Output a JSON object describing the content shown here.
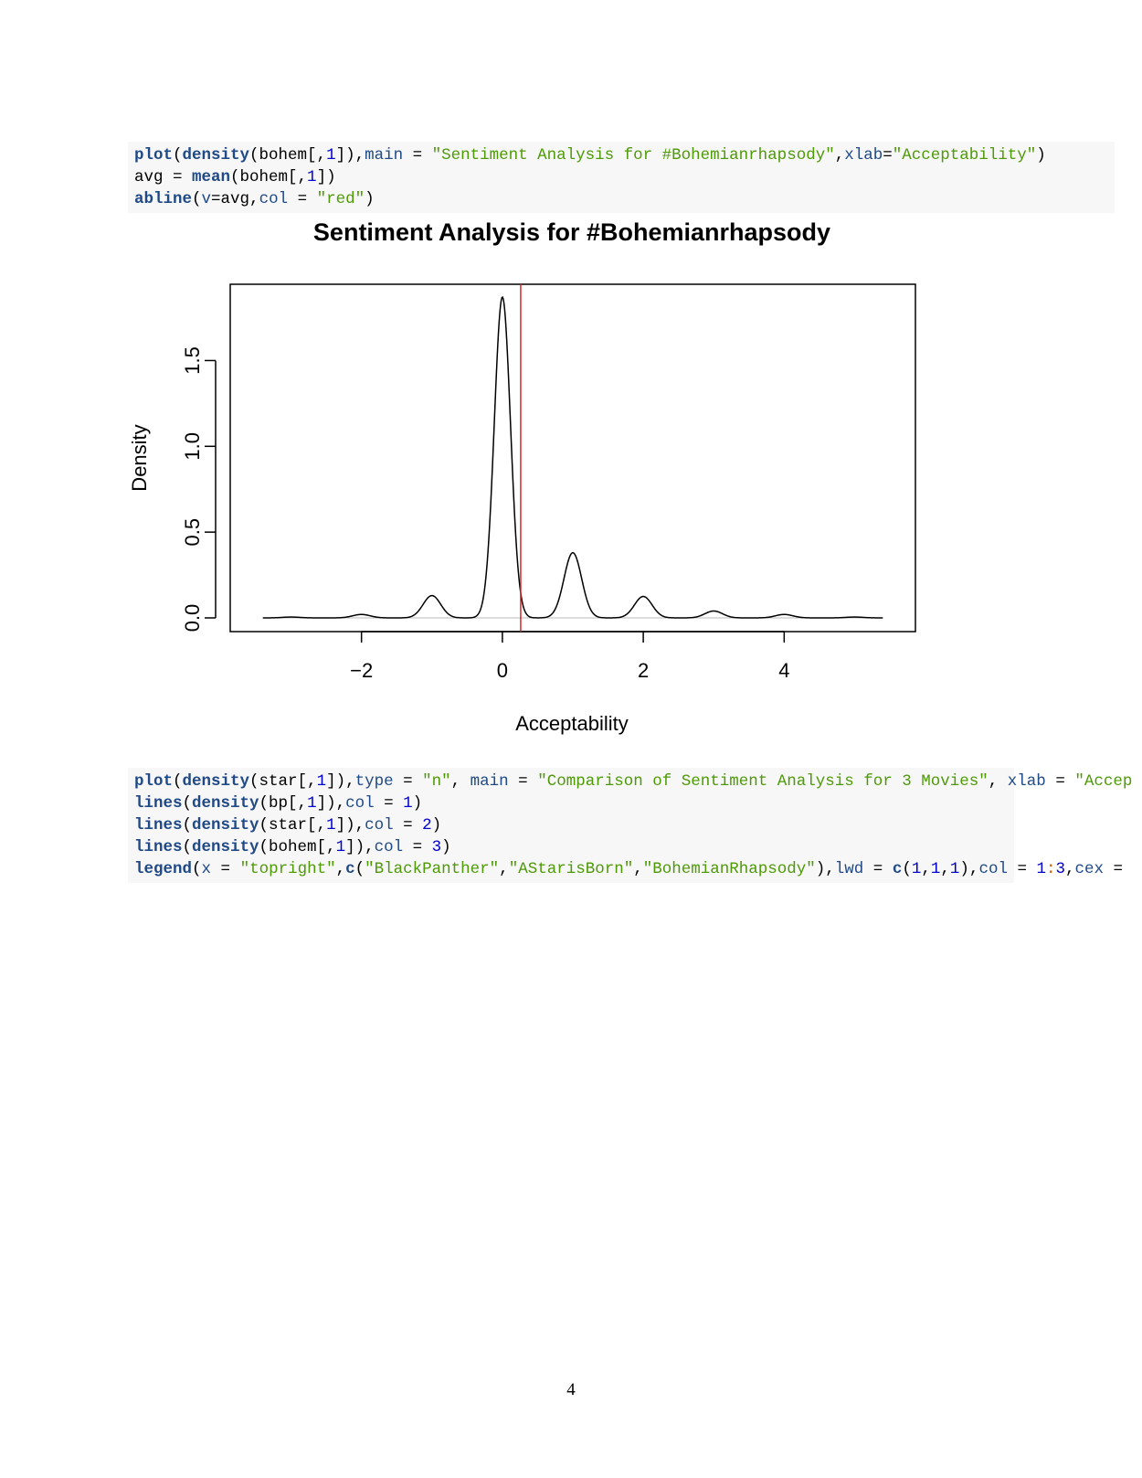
{
  "code_blocks": [
    {
      "lines": [
        [
          [
            "fn",
            "plot"
          ],
          [
            "t",
            "("
          ],
          [
            "fn",
            "density"
          ],
          [
            "t",
            "(bohem[,"
          ],
          [
            "num",
            "1"
          ],
          [
            "t",
            "]),"
          ],
          [
            "arg",
            "main"
          ],
          [
            "t",
            " = "
          ],
          [
            "str",
            "\"Sentiment Analysis for #Bohemianrhapsody\""
          ],
          [
            "t",
            ","
          ],
          [
            "arg",
            "xlab"
          ],
          [
            "t",
            "="
          ],
          [
            "str",
            "\"Acceptability\""
          ],
          [
            "t",
            ")"
          ]
        ],
        [
          [
            "t",
            "avg = "
          ],
          [
            "fn",
            "mean"
          ],
          [
            "t",
            "(bohem[,"
          ],
          [
            "num",
            "1"
          ],
          [
            "t",
            "])"
          ]
        ],
        [
          [
            "fn",
            "abline"
          ],
          [
            "t",
            "("
          ],
          [
            "arg",
            "v"
          ],
          [
            "t",
            "=avg,"
          ],
          [
            "arg",
            "col"
          ],
          [
            "t",
            " = "
          ],
          [
            "str",
            "\"red\""
          ],
          [
            "t",
            ")"
          ]
        ]
      ]
    },
    {
      "lines": [
        [
          [
            "fn",
            "plot"
          ],
          [
            "t",
            "("
          ],
          [
            "fn",
            "density"
          ],
          [
            "t",
            "(star[,"
          ],
          [
            "num",
            "1"
          ],
          [
            "t",
            "]),"
          ],
          [
            "arg",
            "type"
          ],
          [
            "t",
            " = "
          ],
          [
            "str",
            "\"n\""
          ],
          [
            "t",
            ", "
          ],
          [
            "arg",
            "main"
          ],
          [
            "t",
            " = "
          ],
          [
            "str",
            "\"Comparison of Sentiment Analysis for 3 Movies\""
          ],
          [
            "t",
            ", "
          ],
          [
            "arg",
            "xlab"
          ],
          [
            "t",
            " = "
          ],
          [
            "str",
            "\"Accep"
          ]
        ],
        [
          [
            "fn",
            "lines"
          ],
          [
            "t",
            "("
          ],
          [
            "fn",
            "density"
          ],
          [
            "t",
            "(bp[,"
          ],
          [
            "num",
            "1"
          ],
          [
            "t",
            "]),"
          ],
          [
            "arg",
            "col"
          ],
          [
            "t",
            " = "
          ],
          [
            "num",
            "1"
          ],
          [
            "t",
            ")"
          ]
        ],
        [
          [
            "fn",
            "lines"
          ],
          [
            "t",
            "("
          ],
          [
            "fn",
            "density"
          ],
          [
            "t",
            "(star[,"
          ],
          [
            "num",
            "1"
          ],
          [
            "t",
            "]),"
          ],
          [
            "arg",
            "col"
          ],
          [
            "t",
            " = "
          ],
          [
            "num",
            "2"
          ],
          [
            "t",
            ")"
          ]
        ],
        [
          [
            "fn",
            "lines"
          ],
          [
            "t",
            "("
          ],
          [
            "fn",
            "density"
          ],
          [
            "t",
            "(bohem[,"
          ],
          [
            "num",
            "1"
          ],
          [
            "t",
            "]),"
          ],
          [
            "arg",
            "col"
          ],
          [
            "t",
            " = "
          ],
          [
            "num",
            "3"
          ],
          [
            "t",
            ")"
          ]
        ],
        [
          [
            "fn",
            "legend"
          ],
          [
            "t",
            "("
          ],
          [
            "arg",
            "x"
          ],
          [
            "t",
            " = "
          ],
          [
            "str",
            "\"topright\""
          ],
          [
            "t",
            ","
          ],
          [
            "fn",
            "c"
          ],
          [
            "t",
            "("
          ],
          [
            "str",
            "\"BlackPanther\""
          ],
          [
            "t",
            ","
          ],
          [
            "str",
            "\"AStarisBorn\""
          ],
          [
            "t",
            ","
          ],
          [
            "str",
            "\"BohemianRhapsody\""
          ],
          [
            "t",
            "),"
          ],
          [
            "arg",
            "lwd"
          ],
          [
            "t",
            " = "
          ],
          [
            "fn",
            "c"
          ],
          [
            "t",
            "("
          ],
          [
            "num",
            "1"
          ],
          [
            "t",
            ","
          ],
          [
            "num",
            "1"
          ],
          [
            "t",
            ","
          ],
          [
            "num",
            "1"
          ],
          [
            "t",
            "),"
          ],
          [
            "arg",
            "col"
          ],
          [
            "t",
            " = "
          ],
          [
            "num",
            "1"
          ],
          [
            "op",
            ":"
          ],
          [
            "num",
            "3"
          ],
          [
            "t",
            ","
          ],
          [
            "arg",
            "cex"
          ],
          [
            "t",
            " ="
          ]
        ]
      ]
    }
  ],
  "chart_data": {
    "type": "line",
    "title": "Sentiment Analysis for #Bohemianrhapsody",
    "xlabel": "Acceptability",
    "ylabel": "Density",
    "xlim": [
      -3.5,
      5.5
    ],
    "ylim": [
      0,
      1.95
    ],
    "xticks": [
      {
        "value": -2,
        "label": "−2"
      },
      {
        "value": 0,
        "label": "0"
      },
      {
        "value": 2,
        "label": "2"
      },
      {
        "value": 4,
        "label": "4"
      }
    ],
    "yticks": [
      {
        "value": 0,
        "label": "0.0"
      },
      {
        "value": 0.5,
        "label": "0.5"
      },
      {
        "value": 1.0,
        "label": "1.0"
      },
      {
        "value": 1.5,
        "label": "1.5"
      }
    ],
    "series": [
      {
        "color": "#000000",
        "peaks": [
          {
            "x": -3,
            "y": 0.005
          },
          {
            "x": -2,
            "y": 0.02
          },
          {
            "x": -1,
            "y": 0.13
          },
          {
            "x": 0,
            "y": 1.87
          },
          {
            "x": 1,
            "y": 0.38
          },
          {
            "x": 2,
            "y": 0.125
          },
          {
            "x": 3,
            "y": 0.04
          },
          {
            "x": 4,
            "y": 0.02
          },
          {
            "x": 5,
            "y": 0.005
          }
        ],
        "x_range": [
          -3.4,
          5.4
        ]
      }
    ],
    "vline": {
      "x": 0.26,
      "color": "#d62728"
    },
    "baseline": {
      "y": 0,
      "color": "#bbbbbb"
    }
  },
  "page_number": "4"
}
